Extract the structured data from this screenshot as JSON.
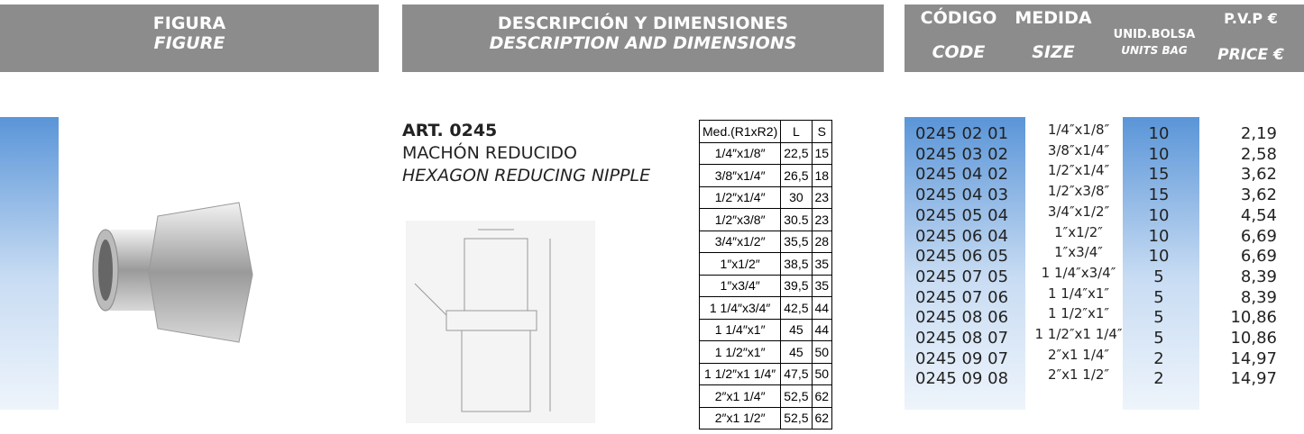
{
  "header": {
    "figure": {
      "es": "FIGURA",
      "en": "FIGURE"
    },
    "description": {
      "es": "DESCRIPCIÓN Y DIMENSIONES",
      "en": "DESCRIPTION AND DIMENSIONS"
    },
    "code": {
      "es": "CÓDIGO",
      "en": "CODE"
    },
    "size": {
      "es": "MEDIDA",
      "en": "SIZE"
    },
    "units": {
      "es": "UNID.BOLSA",
      "en": "UNITS BAG"
    },
    "price": {
      "es": "P.V.P €",
      "en": "PRICE €"
    }
  },
  "product": {
    "article": "ART. 0245",
    "name_es": "MACHÓN REDUCIDO",
    "name_en": "HEXAGON REDUCING NIPPLE"
  },
  "dimension_table": {
    "header": [
      "Med.(R1xR2)",
      "L",
      "S"
    ],
    "rows": [
      [
        "1/4″x1/8″",
        "22,5",
        "15"
      ],
      [
        "3/8″x1/4″",
        "26,5",
        "18"
      ],
      [
        "1/2″x1/4″",
        "30",
        "23"
      ],
      [
        "1/2″x3/8″",
        "30.5",
        "23"
      ],
      [
        "3/4″x1/2″",
        "35,5",
        "28"
      ],
      [
        "1″x1/2″",
        "38,5",
        "35"
      ],
      [
        "1″x3/4″",
        "39,5",
        "35"
      ],
      [
        "1 1/4″x3/4″",
        "42,5",
        "44"
      ],
      [
        "1 1/4″x1″",
        "45",
        "44"
      ],
      [
        "1 1/2″x1″",
        "45",
        "50"
      ],
      [
        "1 1/2″x1 1/4″",
        "47,5",
        "50"
      ],
      [
        "2″x1 1/4″",
        "52,5",
        "62"
      ],
      [
        "2″x1 1/2″",
        "52,5",
        "62"
      ]
    ]
  },
  "price_table": {
    "rows": [
      [
        "0245 02 01",
        "1/4″x1/8″",
        "10",
        "2,19"
      ],
      [
        "0245 03 02",
        "3/8″x1/4″",
        "10",
        "2,58"
      ],
      [
        "0245 04 02",
        "1/2″x1/4″",
        "15",
        "3,62"
      ],
      [
        "0245 04 03",
        "1/2″x3/8″",
        "15",
        "3,62"
      ],
      [
        "0245 05 04",
        "3/4″x1/2″",
        "10",
        "4,54"
      ],
      [
        "0245 06 04",
        "1″x1/2″",
        "10",
        "6,69"
      ],
      [
        "0245 06 05",
        "1″x3/4″",
        "10",
        "6,69"
      ],
      [
        "0245 07 05",
        "1 1/4″x3/4″",
        "5",
        "8,39"
      ],
      [
        "0245 07 06",
        "1 1/4″x1″",
        "5",
        "8,39"
      ],
      [
        "0245 08 06",
        "1 1/2″x1″",
        "5",
        "10,86"
      ],
      [
        "0245 08 07",
        "1 1/2″x1 1/4″",
        "5",
        "10,86"
      ],
      [
        "0245 09 07",
        "2″x1 1/4″",
        "2",
        "14,97"
      ],
      [
        "0245 09 08",
        "2″x1 1/2″",
        "2",
        "14,97"
      ]
    ]
  }
}
